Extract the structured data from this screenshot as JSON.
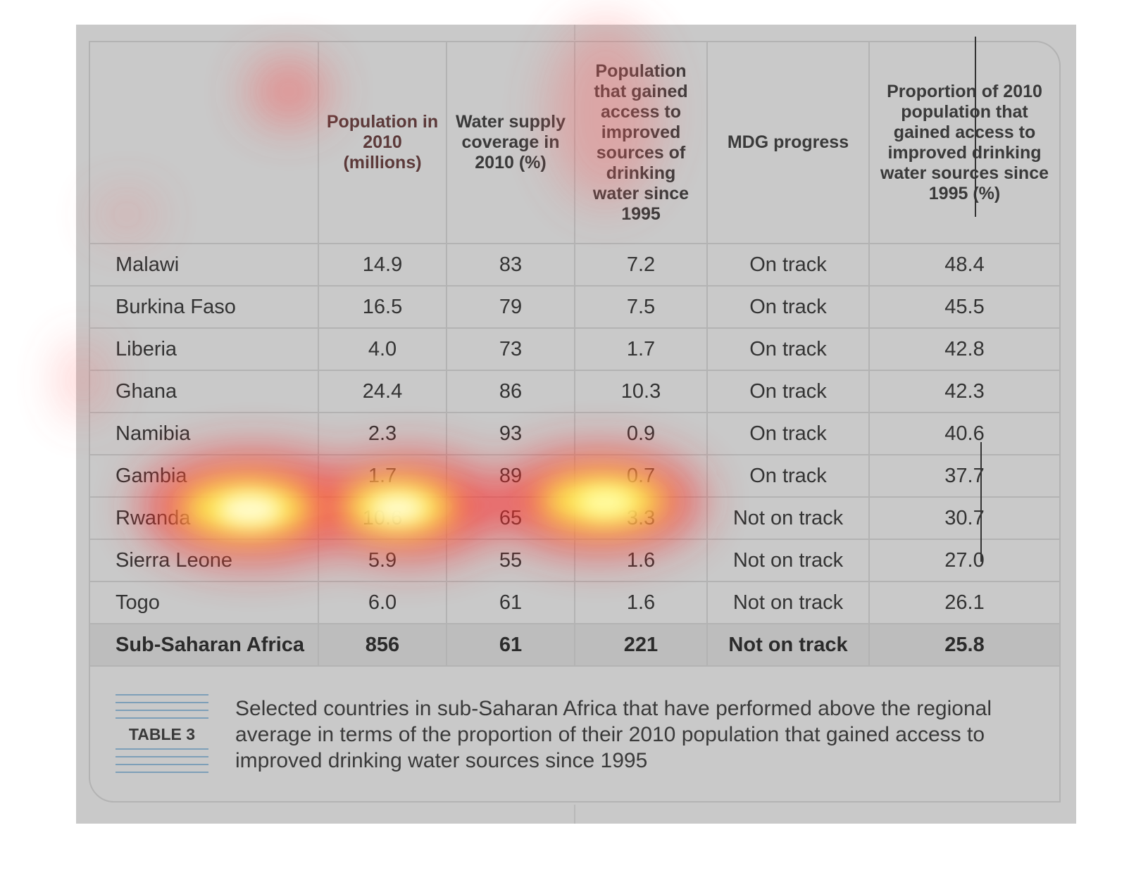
{
  "table": {
    "headers": [
      "",
      "Population in 2010 (millions)",
      "Water supply coverage in 2010 (%)",
      "Population that gained access to improved sources of drinking water since 1995",
      "MDG progress",
      "Proportion of 2010 population that gained access to improved drinking water sources since 1995 (%)"
    ],
    "rows": [
      [
        "Malawi",
        "14.9",
        "83",
        "7.2",
        "On track",
        "48.4"
      ],
      [
        "Burkina Faso",
        "16.5",
        "79",
        "7.5",
        "On track",
        "45.5"
      ],
      [
        "Liberia",
        "4.0",
        "73",
        "1.7",
        "On track",
        "42.8"
      ],
      [
        "Ghana",
        "24.4",
        "86",
        "10.3",
        "On track",
        "42.3"
      ],
      [
        "Namibia",
        "2.3",
        "93",
        "0.9",
        "On track",
        "40.6"
      ],
      [
        "Gambia",
        "1.7",
        "89",
        "0.7",
        "On track",
        "37.7"
      ],
      [
        "Rwanda",
        "10.6",
        "65",
        "3.3",
        "Not on track",
        "30.7"
      ],
      [
        "Sierra Leone",
        "5.9",
        "55",
        "1.6",
        "Not on track",
        "27.0"
      ],
      [
        "Togo",
        "6.0",
        "61",
        "1.6",
        "Not on track",
        "26.1"
      ]
    ],
    "total": [
      "Sub-Saharan Africa",
      "856",
      "61",
      "221",
      "Not on track",
      "25.8"
    ]
  },
  "caption": {
    "label": "TABLE 3",
    "text": "Selected countries in sub-Saharan Africa that have performed above the regional average in terms of the proportion of their 2010 population that gained access to improved drinking water sources since 1995"
  },
  "colors": {
    "panel_bg": "#c9c9c9",
    "grid_line": "#b3b3b3",
    "label_lines": "#7d9fb8",
    "heat_hot": "#ffff80",
    "heat_warm": "#ff3030"
  }
}
